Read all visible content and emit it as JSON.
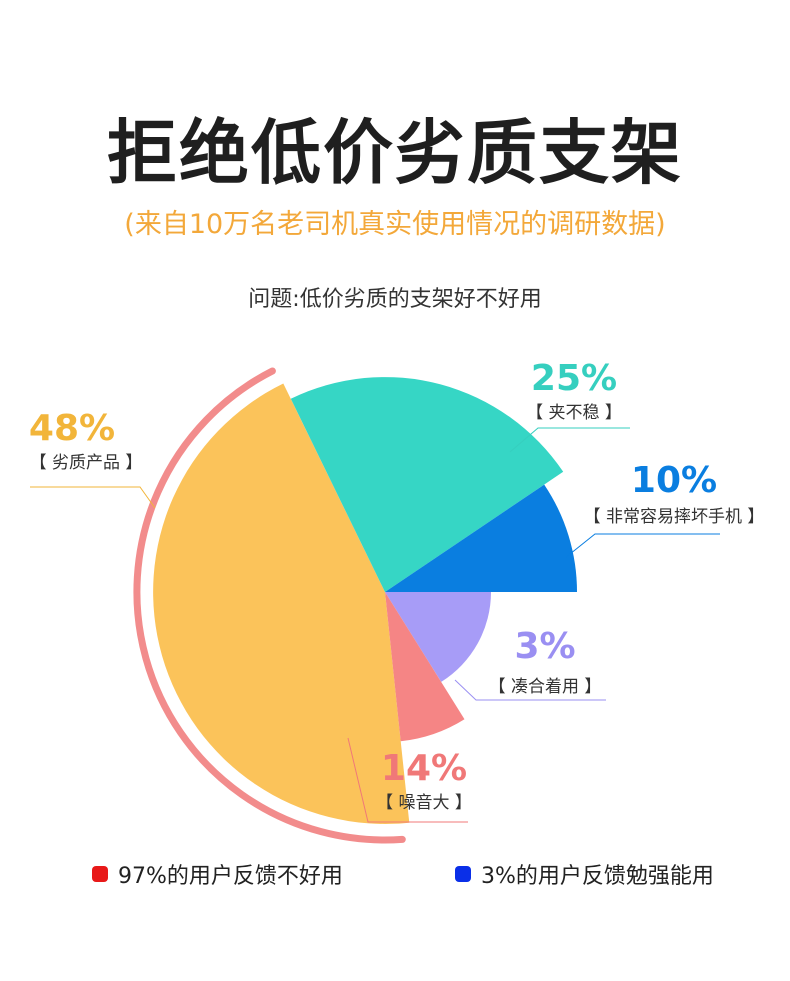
{
  "header": {
    "title": "拒绝低价劣质支架",
    "subtitle": "(来自10万名老司机真实使用情况的调研数据)",
    "question": "问题:低价劣质的支架好不好用"
  },
  "colors": {
    "title": "#1f1f1f",
    "subtitle": "#f3a83a",
    "ring": "#f28c8c"
  },
  "chart_data": {
    "type": "pie",
    "title": "问题:低价劣质的支架好不好用",
    "slices": [
      {
        "label": "【  劣质产品  】",
        "percent_label": "48%",
        "value": 48,
        "color": "#fbc35a",
        "label_color": "#f2b53a"
      },
      {
        "label": "【  夹不稳  】",
        "percent_label": "25%",
        "value": 25,
        "color": "#36d6c5",
        "label_color": "#36cfbf"
      },
      {
        "label": "【  非常容易摔坏手机  】",
        "percent_label": "10%",
        "value": 10,
        "color": "#0a7ee0",
        "label_color": "#0a7ee0"
      },
      {
        "label": "【  凑合着用  】",
        "percent_label": "3%",
        "value": 3,
        "color": "#a79cf7",
        "label_color": "#9a8ff2"
      },
      {
        "label": "【  噪音大  】",
        "percent_label": "14%",
        "value": 14,
        "color": "#f58585",
        "label_color": "#f07878"
      }
    ],
    "legend": [
      {
        "text": "97%的用户反馈不好用",
        "color": "#e81919"
      },
      {
        "text": "3%的用户反馈勉强能用",
        "color": "#0a2fe8"
      }
    ]
  }
}
